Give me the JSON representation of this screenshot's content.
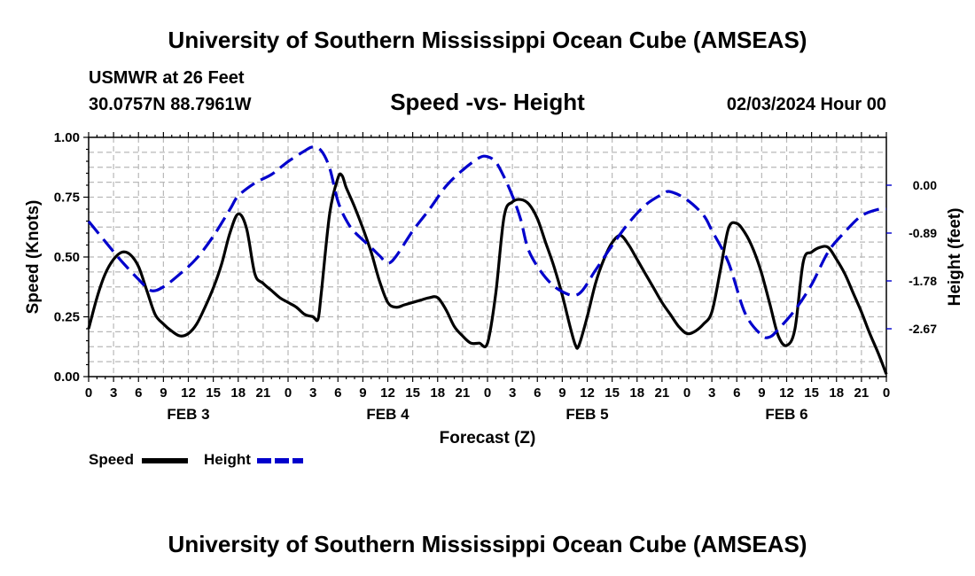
{
  "header": {
    "title": "University of Southern Mississippi Ocean Cube (AMSEAS)",
    "station": "USMWR at 26 Feet",
    "coords": "30.0757N  88.7961W",
    "date": "02/03/2024 Hour 00"
  },
  "footer": {
    "title": "University of Southern Mississippi Ocean Cube (AMSEAS)"
  },
  "legend": {
    "speed_label": "Speed",
    "height_label": "Height"
  },
  "chart_data": {
    "type": "line",
    "title": "Speed -vs- Height",
    "xlabel": "Forecast (Z)",
    "ylabel": "Speed (Knots)",
    "ylabel_right": "Height (feet)",
    "x_range_hours": [
      0,
      96
    ],
    "x_tick_labels": [
      "0",
      "3",
      "6",
      "9",
      "12",
      "15",
      "18",
      "21",
      "0",
      "3",
      "6",
      "9",
      "12",
      "15",
      "18",
      "21",
      "0",
      "3",
      "6",
      "9",
      "12",
      "15",
      "18",
      "21",
      "0",
      "3",
      "6",
      "9",
      "12",
      "15",
      "18",
      "21",
      "0"
    ],
    "day_labels": [
      "FEB 3",
      "FEB 4",
      "FEB 5",
      "FEB 6"
    ],
    "ylim_left": [
      0,
      1
    ],
    "y_left_ticks": [
      "0.00",
      "0.25",
      "0.50",
      "0.75",
      "1.00"
    ],
    "ylim_right": [
      -3.56,
      0.89
    ],
    "y_right_ticks": [
      {
        "value": 0.0,
        "label": "0.00"
      },
      {
        "value": -0.89,
        "label": "-0.89"
      },
      {
        "value": -1.78,
        "label": "-1.78"
      },
      {
        "value": -2.67,
        "label": "-2.67"
      }
    ],
    "grid": true,
    "series": [
      {
        "name": "Speed",
        "axis": "left",
        "color": "#000000",
        "dash": "solid",
        "points": [
          [
            0,
            0.2
          ],
          [
            1,
            0.33
          ],
          [
            2,
            0.43
          ],
          [
            3,
            0.49
          ],
          [
            4,
            0.52
          ],
          [
            5,
            0.51
          ],
          [
            6,
            0.46
          ],
          [
            7,
            0.36
          ],
          [
            8,
            0.26
          ],
          [
            9,
            0.22
          ],
          [
            10,
            0.19
          ],
          [
            11,
            0.17
          ],
          [
            12,
            0.18
          ],
          [
            13,
            0.22
          ],
          [
            14,
            0.29
          ],
          [
            15,
            0.37
          ],
          [
            16,
            0.47
          ],
          [
            17,
            0.6
          ],
          [
            18,
            0.68
          ],
          [
            19,
            0.62
          ],
          [
            20,
            0.43
          ],
          [
            21,
            0.39
          ],
          [
            22,
            0.36
          ],
          [
            23,
            0.33
          ],
          [
            24,
            0.31
          ],
          [
            25,
            0.29
          ],
          [
            26,
            0.26
          ],
          [
            27,
            0.25
          ],
          [
            27.6,
            0.24
          ],
          [
            28,
            0.35
          ],
          [
            29,
            0.68
          ],
          [
            30,
            0.83
          ],
          [
            30.5,
            0.84
          ],
          [
            31,
            0.79
          ],
          [
            32,
            0.71
          ],
          [
            33,
            0.62
          ],
          [
            34,
            0.52
          ],
          [
            35,
            0.4
          ],
          [
            36,
            0.31
          ],
          [
            37,
            0.29
          ],
          [
            38,
            0.3
          ],
          [
            39,
            0.31
          ],
          [
            40,
            0.32
          ],
          [
            41,
            0.33
          ],
          [
            42,
            0.33
          ],
          [
            43,
            0.28
          ],
          [
            44,
            0.21
          ],
          [
            45,
            0.17
          ],
          [
            46,
            0.14
          ],
          [
            47,
            0.14
          ],
          [
            48,
            0.14
          ],
          [
            49,
            0.35
          ],
          [
            50,
            0.67
          ],
          [
            51,
            0.73
          ],
          [
            52,
            0.74
          ],
          [
            53,
            0.72
          ],
          [
            54,
            0.66
          ],
          [
            55,
            0.56
          ],
          [
            56,
            0.46
          ],
          [
            57,
            0.34
          ],
          [
            58,
            0.2
          ],
          [
            58.6,
            0.13
          ],
          [
            59,
            0.13
          ],
          [
            60,
            0.25
          ],
          [
            61,
            0.39
          ],
          [
            62,
            0.49
          ],
          [
            63,
            0.56
          ],
          [
            64,
            0.59
          ],
          [
            65,
            0.55
          ],
          [
            66,
            0.49
          ],
          [
            67,
            0.43
          ],
          [
            68,
            0.37
          ],
          [
            69,
            0.31
          ],
          [
            70,
            0.26
          ],
          [
            71,
            0.21
          ],
          [
            72,
            0.18
          ],
          [
            73,
            0.19
          ],
          [
            74,
            0.22
          ],
          [
            75,
            0.27
          ],
          [
            76,
            0.44
          ],
          [
            77,
            0.62
          ],
          [
            78,
            0.64
          ],
          [
            79,
            0.6
          ],
          [
            80,
            0.53
          ],
          [
            81,
            0.43
          ],
          [
            82,
            0.3
          ],
          [
            83,
            0.17
          ],
          [
            84,
            0.13
          ],
          [
            85,
            0.2
          ],
          [
            86,
            0.48
          ],
          [
            87,
            0.52
          ],
          [
            88,
            0.54
          ],
          [
            89,
            0.54
          ],
          [
            90,
            0.49
          ],
          [
            91,
            0.43
          ],
          [
            92,
            0.35
          ],
          [
            93,
            0.27
          ],
          [
            94,
            0.18
          ],
          [
            95,
            0.1
          ],
          [
            96,
            0.01
          ]
        ]
      },
      {
        "name": "Height",
        "axis": "right",
        "color": "#0000cc",
        "dash": "dashed",
        "points": [
          [
            0,
            -0.67
          ],
          [
            2,
            -1.05
          ],
          [
            4,
            -1.42
          ],
          [
            6,
            -1.75
          ],
          [
            7.5,
            -1.96
          ],
          [
            9,
            -1.89
          ],
          [
            11,
            -1.65
          ],
          [
            13,
            -1.36
          ],
          [
            15,
            -0.95
          ],
          [
            17,
            -0.45
          ],
          [
            18,
            -0.2
          ],
          [
            20,
            0.04
          ],
          [
            22,
            0.2
          ],
          [
            24,
            0.44
          ],
          [
            26,
            0.64
          ],
          [
            27,
            0.71
          ],
          [
            28,
            0.64
          ],
          [
            29,
            0.32
          ],
          [
            30,
            -0.3
          ],
          [
            31,
            -0.65
          ],
          [
            32,
            -0.87
          ],
          [
            34,
            -1.16
          ],
          [
            35,
            -1.31
          ],
          [
            36,
            -1.45
          ],
          [
            37,
            -1.32
          ],
          [
            39,
            -0.85
          ],
          [
            41,
            -0.45
          ],
          [
            43,
            -0.02
          ],
          [
            45,
            0.28
          ],
          [
            47,
            0.51
          ],
          [
            48,
            0.53
          ],
          [
            49,
            0.43
          ],
          [
            50,
            0.15
          ],
          [
            51,
            -0.2
          ],
          [
            52,
            -0.64
          ],
          [
            53,
            -1.23
          ],
          [
            55,
            -1.72
          ],
          [
            57,
            -1.98
          ],
          [
            59,
            -2.02
          ],
          [
            61,
            -1.58
          ],
          [
            63,
            -1.12
          ],
          [
            65,
            -0.7
          ],
          [
            67,
            -0.37
          ],
          [
            69,
            -0.17
          ],
          [
            70,
            -0.12
          ],
          [
            72,
            -0.27
          ],
          [
            74,
            -0.56
          ],
          [
            75,
            -0.84
          ],
          [
            77,
            -1.44
          ],
          [
            79,
            -2.38
          ],
          [
            81,
            -2.79
          ],
          [
            82,
            -2.82
          ],
          [
            83,
            -2.68
          ],
          [
            85,
            -2.32
          ],
          [
            87,
            -1.85
          ],
          [
            89,
            -1.24
          ],
          [
            91,
            -0.87
          ],
          [
            93,
            -0.57
          ],
          [
            95,
            -0.45
          ],
          [
            96,
            -0.44
          ]
        ]
      }
    ]
  }
}
